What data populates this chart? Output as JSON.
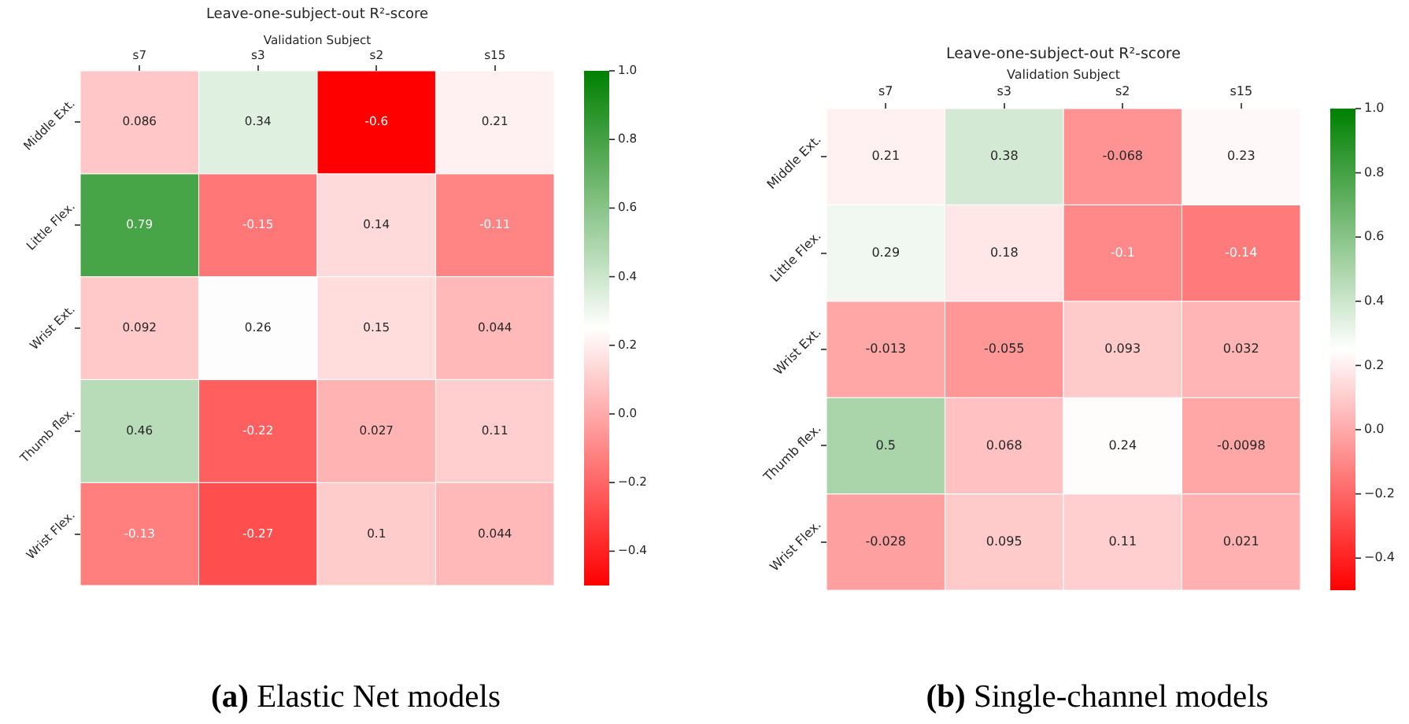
{
  "chart_data": [
    {
      "type": "heatmap",
      "title": "Leave-one-subject-out R²-score",
      "xlabel": "Validation Subject",
      "categories": [
        "s7",
        "s3",
        "s2",
        "s15"
      ],
      "y_categories": [
        "Middle Ext.",
        "Little Flex.",
        "Wrist Ext.",
        "Thumb flex.",
        "Wrist Flex."
      ],
      "cells": [
        [
          0.086,
          0.34,
          -0.6,
          0.21
        ],
        [
          0.79,
          -0.15,
          0.14,
          -0.11
        ],
        [
          0.092,
          0.26,
          0.15,
          0.044
        ],
        [
          0.46,
          -0.22,
          0.027,
          0.11
        ],
        [
          -0.13,
          -0.27,
          0.1,
          0.044
        ]
      ],
      "colors": [
        "#ff0000",
        "#ffffff",
        "#008000"
      ],
      "clim": [
        -0.5,
        1.0
      ],
      "cticks": [
        {
          "value": -0.4,
          "label": "−0.4"
        },
        {
          "value": -0.2,
          "label": "−0.2"
        },
        {
          "value": 0,
          "label": "0.0"
        },
        0.2,
        0.4,
        0.6,
        0.8,
        {
          "value": 1,
          "label": "1.0"
        }
      ],
      "data_labels": true,
      "annotations": [
        "(a) Elastic Net models"
      ]
    },
    {
      "type": "heatmap",
      "title": "Leave-one-subject-out R²-score",
      "xlabel": "Validation Subject",
      "categories": [
        "s7",
        "s3",
        "s2",
        "s15"
      ],
      "y_categories": [
        "Middle Ext.",
        "Little Flex.",
        "Wrist Ext.",
        "Thumb flex.",
        "Wrist Flex."
      ],
      "cells": [
        [
          0.21,
          0.38,
          -0.068,
          0.23
        ],
        [
          0.29,
          0.18,
          -0.1,
          -0.14
        ],
        [
          -0.013,
          -0.055,
          0.093,
          0.032
        ],
        [
          0.5,
          0.068,
          0.24,
          -0.0098
        ],
        [
          -0.028,
          0.095,
          0.11,
          0.021
        ]
      ],
      "colors": [
        "#ff0000",
        "#ffffff",
        "#008000"
      ],
      "clim": [
        -0.5,
        1.0
      ],
      "cticks": [
        {
          "value": -0.4,
          "label": "−0.4"
        },
        {
          "value": -0.2,
          "label": "−0.2"
        },
        {
          "value": 0,
          "label": "0.0"
        },
        0.2,
        0.4,
        0.6,
        0.8,
        {
          "value": 1,
          "label": "1.0"
        }
      ],
      "data_labels": true,
      "annotations": [
        "(b) Single-channel models"
      ]
    }
  ]
}
